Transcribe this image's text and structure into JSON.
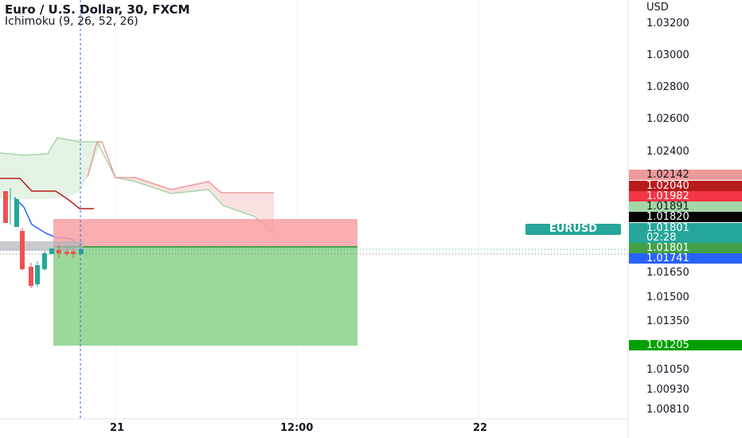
{
  "header": {
    "title": "Euro / U.S. Dollar, 30, FXCM",
    "indicator": "Ichimoku (9, 26, 52, 26)"
  },
  "price_axis": {
    "currency_label": "USD",
    "ticks": [
      "1.03200",
      "1.03000",
      "1.02800",
      "1.02600",
      "1.02400",
      "1.01650",
      "1.01500",
      "1.01350",
      "1.01050",
      "1.00930",
      "1.00810"
    ]
  },
  "price_tags": [
    {
      "value": "1.02142",
      "color": "#ef9a9a",
      "text_color": "#131722"
    },
    {
      "value": "1.02040",
      "color": "#b71c1c",
      "text_color": "#ffffff"
    },
    {
      "value": "1.01982",
      "color": "#f23645",
      "text_color": "#ffffff"
    },
    {
      "value": "1.01891",
      "color": "#a5d6a7",
      "text_color": "#131722"
    },
    {
      "value": "1.01820",
      "color": "#000000",
      "text_color": "#ffffff"
    },
    {
      "value": "1.01801",
      "color": "#26a69a",
      "text_color": "#ffffff",
      "countdown": "02:28"
    },
    {
      "value": "1.01801",
      "color": "#43a047",
      "text_color": "#ffffff"
    },
    {
      "value": "1.01741",
      "color": "#2962ff",
      "text_color": "#ffffff"
    },
    {
      "value": "1.01205",
      "color": "#00a000",
      "text_color": "#ffffff"
    }
  ],
  "symbol_tag": "EURUSD",
  "time_axis": [
    "21",
    "12:00",
    "22"
  ],
  "colors": {
    "up": "#26a69a",
    "down": "#ef5350",
    "tenkan": "#2962ff",
    "kijun": "#b71c1c",
    "cloud_bull": "#a5d6a7",
    "cloud_bear": "#ef9a9a",
    "stop_zone": "#f8a0a3",
    "target_zone": "#8fd58f",
    "crosshair": "#2962ff"
  }
}
